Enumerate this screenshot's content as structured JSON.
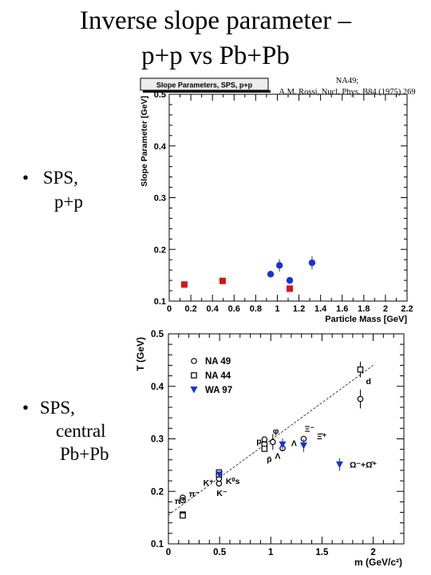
{
  "slide": {
    "title_line1": "Inverse slope parameter –",
    "title_line2": "p+p vs Pb+Pb",
    "reference_line1": "NA49;",
    "reference_line2": "A.M. Rossi, Nucl. Phys. B84 (1975) 269",
    "bullet1": {
      "marker": "•",
      "line1": "SPS,",
      "line2": "p+p"
    },
    "bullet2": {
      "marker": "•",
      "line1": "SPS,",
      "line2": "central",
      "line3": "Pb+Pb"
    }
  },
  "colors": {
    "red": "#dd1111",
    "blue": "#1133dd",
    "black": "#000000"
  },
  "chart_data": [
    {
      "type": "scatter",
      "title": "Slope Parameters, SPS, p+p",
      "xlabel": "Particle Mass [GeV]",
      "ylabel": "Slope Parameter [GeV]",
      "xlim": [
        0,
        2.2
      ],
      "ylim": [
        0.1,
        0.5
      ],
      "xticks": [
        "0",
        "0.2",
        "0.4",
        "0.6",
        "0.8",
        "1",
        "1.2",
        "1.4",
        "1.6",
        "1.8",
        "2",
        "2.2"
      ],
      "yticks": [
        "0.1",
        "0.2",
        "0.3",
        "0.4",
        "0.5"
      ],
      "series": [
        {
          "marker": "square",
          "color": "#dd1111",
          "points": [
            {
              "x": 0.14,
              "y": 0.132
            },
            {
              "x": 0.494,
              "y": 0.139
            },
            {
              "x": 1.115,
              "y": 0.124
            }
          ]
        },
        {
          "marker": "circle",
          "color": "#1133dd",
          "points": [
            {
              "x": 0.938,
              "y": 0.152,
              "err": 0.004
            },
            {
              "x": 1.02,
              "y": 0.169,
              "err": 0.012
            },
            {
              "x": 1.115,
              "y": 0.14,
              "err": 0.006
            },
            {
              "x": 1.321,
              "y": 0.174,
              "err": 0.013
            }
          ]
        }
      ]
    },
    {
      "type": "scatter",
      "xlabel": "m (GeV/c²)",
      "ylabel": "T (GeV)",
      "xlim": [
        0,
        2.3
      ],
      "ylim": [
        0.1,
        0.5
      ],
      "xticks": [
        "0",
        "0.5",
        "1",
        "1.5",
        "2"
      ],
      "yticks": [
        "0.1",
        "0.2",
        "0.3",
        "0.4",
        "0.5"
      ],
      "legend": {
        "position": "top-left",
        "entries": [
          "NA 49",
          "NA 44",
          "WA 97"
        ]
      },
      "series": [
        {
          "name": "NA 49",
          "marker": "open-circle",
          "color": "#000000",
          "points": [
            {
              "x": 0.14,
              "y": 0.188
            },
            {
              "x": 0.14,
              "y": 0.183
            },
            {
              "x": 0.494,
              "y": 0.215
            },
            {
              "x": 0.494,
              "y": 0.224
            },
            {
              "x": 0.938,
              "y": 0.299
            },
            {
              "x": 1.02,
              "y": 0.294,
              "err": 0.015
            },
            {
              "x": 1.115,
              "y": 0.282
            },
            {
              "x": 1.321,
              "y": 0.3
            },
            {
              "x": 1.875,
              "y": 0.376,
              "err": 0.018
            }
          ]
        },
        {
          "name": "NA 44",
          "marker": "open-square",
          "color": "#000000",
          "points": [
            {
              "x": 0.14,
              "y": 0.156
            },
            {
              "x": 0.14,
              "y": 0.154
            },
            {
              "x": 0.494,
              "y": 0.236
            },
            {
              "x": 0.494,
              "y": 0.232
            },
            {
              "x": 0.938,
              "y": 0.289
            },
            {
              "x": 0.938,
              "y": 0.281
            },
            {
              "x": 1.875,
              "y": 0.432,
              "err": 0.015
            }
          ]
        },
        {
          "name": "WA 97",
          "marker": "filled-triangle",
          "color": "#1133dd",
          "points": [
            {
              "x": 0.498,
              "y": 0.232
            },
            {
              "x": 1.115,
              "y": 0.289,
              "err": 0.012
            },
            {
              "x": 1.321,
              "y": 0.287,
              "err": 0.012
            },
            {
              "x": 1.672,
              "y": 0.251,
              "err": 0.012
            }
          ]
        }
      ],
      "fit_line": {
        "style": "dashed",
        "points": [
          {
            "x": 0,
            "y": 0.155
          },
          {
            "x": 2,
            "y": 0.44
          }
        ]
      },
      "annotations": [
        {
          "text": "π⁺",
          "x": 0.06,
          "y": 0.176
        },
        {
          "text": "π⁻",
          "x": 0.2,
          "y": 0.19
        },
        {
          "text": "K⁺",
          "x": 0.34,
          "y": 0.211
        },
        {
          "text": "K⁻",
          "x": 0.47,
          "y": 0.191
        },
        {
          "text": "K⁰s",
          "x": 0.56,
          "y": 0.214
        },
        {
          "text": "p",
          "x": 0.86,
          "y": 0.29
        },
        {
          "text": "p̄",
          "x": 0.96,
          "y": 0.256
        },
        {
          "text": "φ",
          "x": 1.02,
          "y": 0.31
        },
        {
          "text": "Ξ⁻",
          "x": 1.33,
          "y": 0.314
        },
        {
          "text": "Ξ̄⁺",
          "x": 1.45,
          "y": 0.299
        },
        {
          "text": "Λ",
          "x": 1.2,
          "y": 0.286
        },
        {
          "text": "Λ",
          "x": 1.04,
          "y": 0.262
        },
        {
          "text": "d",
          "x": 1.93,
          "y": 0.404
        },
        {
          "text": "Ω⁻+Ω̄⁺",
          "x": 1.77,
          "y": 0.245
        }
      ]
    }
  ]
}
